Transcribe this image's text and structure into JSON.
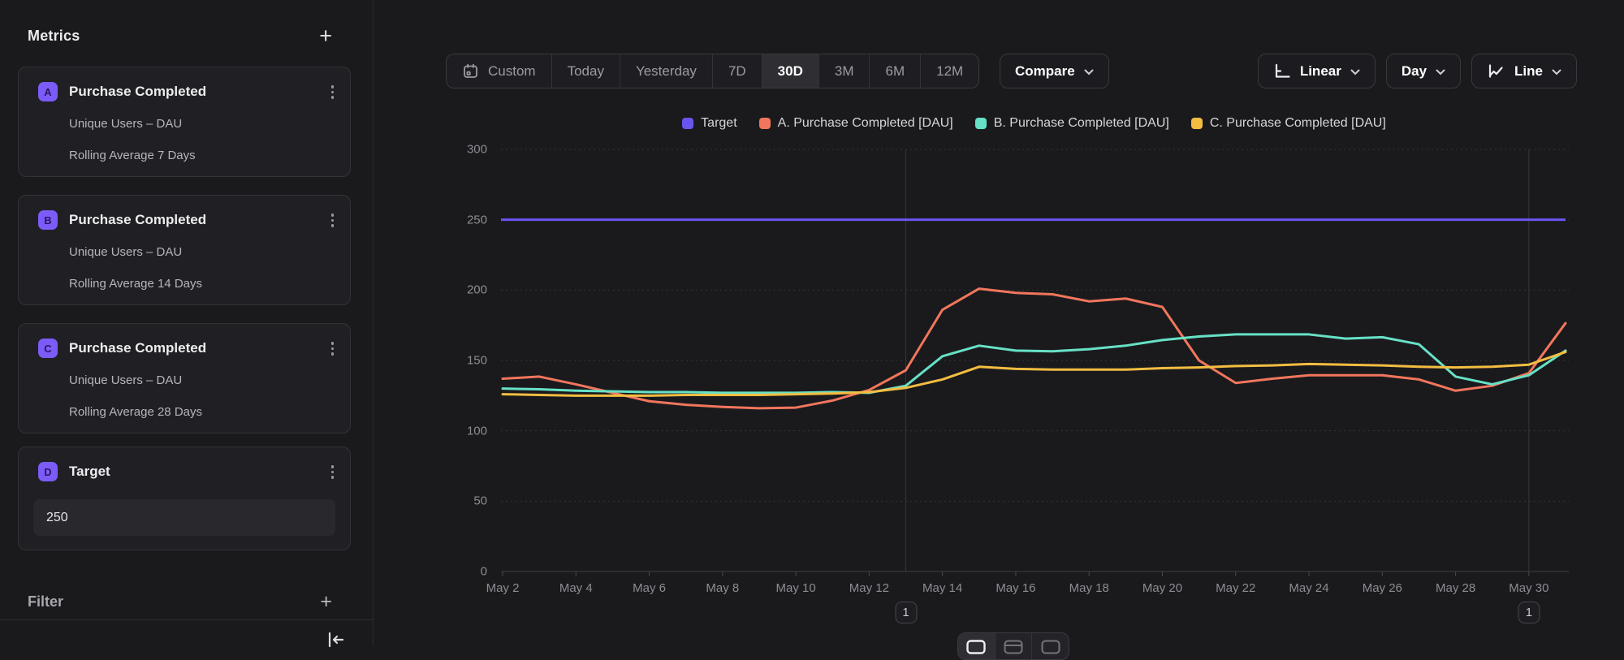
{
  "sidebar": {
    "title": "Metrics",
    "cards": [
      {
        "badge": "A",
        "title": "Purchase Completed",
        "line1": "Unique Users – DAU",
        "line2": "Rolling Average 7 Days"
      },
      {
        "badge": "B",
        "title": "Purchase Completed",
        "line1": "Unique Users – DAU",
        "line2": "Rolling Average 14 Days"
      },
      {
        "badge": "C",
        "title": "Purchase Completed",
        "line1": "Unique Users – DAU",
        "line2": "Rolling Average 28 Days"
      },
      {
        "badge": "D",
        "title": "Target",
        "value": "250"
      }
    ],
    "filter_label": "Filter"
  },
  "toolbar": {
    "ranges": [
      "Custom",
      "Today",
      "Yesterday",
      "7D",
      "30D",
      "3M",
      "6M",
      "12M"
    ],
    "selected_range": "30D",
    "compare_label": "Compare",
    "scale_label": "Linear",
    "granularity_label": "Day",
    "chart_type_label": "Line"
  },
  "colors": {
    "badge_purple": "#7C5CF8",
    "target_purple": "#6A54F0",
    "series_a_orange": "#F1765C",
    "series_b_teal": "#67E1C6",
    "series_c_yellow": "#F3BD41"
  },
  "chart_data": {
    "type": "line",
    "title": "",
    "x_dates": [
      "May 2",
      "May 3",
      "May 4",
      "May 5",
      "May 6",
      "May 7",
      "May 8",
      "May 9",
      "May 10",
      "May 11",
      "May 12",
      "May 13",
      "May 14",
      "May 15",
      "May 16",
      "May 17",
      "May 18",
      "May 19",
      "May 20",
      "May 21",
      "May 22",
      "May 23",
      "May 24",
      "May 25",
      "May 26",
      "May 27",
      "May 28",
      "May 29",
      "May 30",
      "May 31"
    ],
    "x_tick_step": 2,
    "ylim": [
      0,
      300
    ],
    "y_ticks": [
      0,
      50,
      100,
      150,
      200,
      250,
      300
    ],
    "grid": true,
    "legend_position": "top-center",
    "target": {
      "name": "Target",
      "value": 250,
      "color": "#6A54F0"
    },
    "series": [
      {
        "name": "A. Purchase Completed [DAU]",
        "color": "#F1765C",
        "values": [
          137,
          138.5,
          133,
          127,
          121,
          118.5,
          117,
          116,
          116.5,
          121.5,
          129,
          143,
          186,
          201,
          198,
          197,
          192,
          194,
          188,
          150,
          134,
          137,
          139.5,
          139.5,
          139.5,
          136.5,
          128.5,
          132,
          141,
          176.5
        ]
      },
      {
        "name": "B. Purchase Completed [DAU]",
        "color": "#67E1C6",
        "values": [
          130,
          129.5,
          128.5,
          128,
          127.5,
          127.5,
          127,
          127,
          127,
          127.5,
          127,
          132,
          153,
          160.5,
          157,
          156.5,
          158,
          160.5,
          164.5,
          167,
          168.5,
          168.5,
          168.5,
          165.5,
          166.5,
          161.5,
          138.5,
          133,
          139.5,
          157
        ]
      },
      {
        "name": "C. Purchase Completed [DAU]",
        "color": "#F3BD41",
        "values": [
          126,
          125.5,
          125,
          125,
          125,
          125.5,
          125.5,
          125.5,
          126,
          126.5,
          127.5,
          130.5,
          136.5,
          145.5,
          144,
          143.5,
          143.5,
          143.5,
          144.5,
          145,
          146,
          146.5,
          147.5,
          147,
          146.5,
          145.5,
          145,
          145.5,
          147,
          156
        ]
      }
    ],
    "legend": [
      "Target",
      "A. Purchase Completed [DAU]",
      "B. Purchase Completed [DAU]",
      "C. Purchase Completed [DAU]"
    ],
    "annotations": [
      {
        "label": "1",
        "x_index": 11
      },
      {
        "label": "1",
        "x_index": 28
      }
    ]
  }
}
